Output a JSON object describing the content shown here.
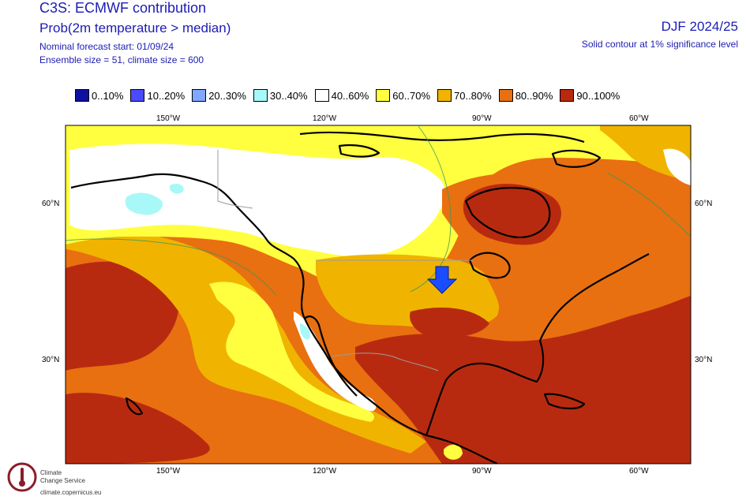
{
  "header": {
    "title": "C3S: ECMWF contribution",
    "subtitle": "Prob(2m temperature > median)",
    "start_line": "Nominal forecast start: 01/09/24",
    "ensemble_line": "Ensemble size = 51, climate size = 600",
    "season": "DJF 2024/25",
    "significance_note": "Solid contour at 1% significance level"
  },
  "legend": [
    {
      "label": "0..10%",
      "color": "#1010a0"
    },
    {
      "label": "10..20%",
      "color": "#4a4aff"
    },
    {
      "label": "20..30%",
      "color": "#80a8ff"
    },
    {
      "label": "30..40%",
      "color": "#a8f8f8"
    },
    {
      "label": "40..60%",
      "color": "#ffffff"
    },
    {
      "label": "60..70%",
      "color": "#ffff40"
    },
    {
      "label": "70..80%",
      "color": "#f0b400"
    },
    {
      "label": "80..90%",
      "color": "#e87010"
    },
    {
      "label": "90..100%",
      "color": "#b82a10"
    }
  ],
  "axes": {
    "longitudes": [
      "150°W",
      "120°W",
      "90°W",
      "60°W"
    ],
    "latitudes": [
      "60°N",
      "30°N"
    ]
  },
  "annotation": {
    "arrow_icon": "down-arrow-icon",
    "color": "#1a4dff"
  },
  "logo": {
    "line1": "Climate",
    "line2": "Change Service",
    "url": "climate.copernicus.eu"
  }
}
